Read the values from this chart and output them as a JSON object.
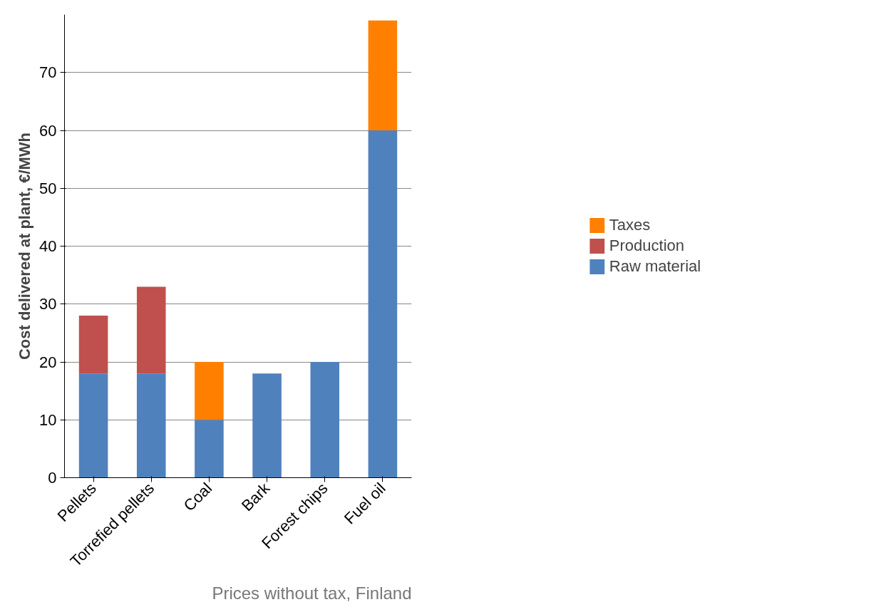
{
  "chart_data": {
    "type": "bar",
    "stacked": true,
    "ylabel": "Cost delivered at plant, €/MWh",
    "categories": [
      "Pellets",
      "Torrefied pellets",
      "Coal",
      "Bark",
      "Forest chips",
      "Fuel oil"
    ],
    "series": [
      {
        "name": "Raw material",
        "color": "#4f81bd",
        "values": [
          18,
          18,
          10,
          18,
          20,
          60
        ]
      },
      {
        "name": "Production",
        "color": "#c0504d",
        "values": [
          10,
          15,
          null,
          null,
          null,
          null
        ]
      },
      {
        "name": "Taxes",
        "color": "#ff8000",
        "values": [
          null,
          null,
          10,
          null,
          null,
          19
        ]
      }
    ],
    "ylim": [
      0,
      80
    ],
    "yticks": [
      0,
      10,
      20,
      30,
      40,
      50,
      60,
      70
    ],
    "grid": "y",
    "legend": "right",
    "annotations": [
      "Prices without tax, Finland"
    ]
  }
}
